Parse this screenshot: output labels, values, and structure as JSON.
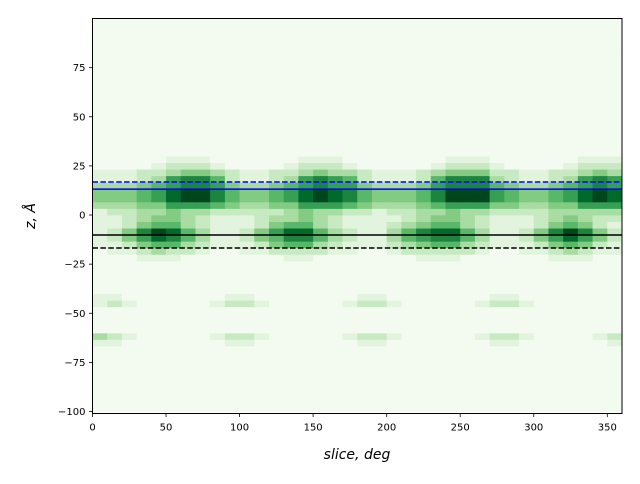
{
  "chart_data": {
    "type": "heatmap",
    "title": "",
    "xlabel": "slice, deg",
    "ylabel": "z, Å",
    "xlim": [
      0,
      360
    ],
    "ylim": [
      -101,
      100
    ],
    "x_ticks": [
      "0",
      "50",
      "100",
      "150",
      "200",
      "250",
      "300",
      "350"
    ],
    "y_ticks": [
      "-100",
      "-75",
      "-50",
      "-25",
      "0",
      "25",
      "50",
      "75"
    ],
    "colormap": "Greens",
    "x_bins": {
      "start": 0,
      "end": 360,
      "count": 36
    },
    "z_bins": {
      "start": -100,
      "end": 100,
      "count": 60
    },
    "intensity_scale": "0-9 relative density per bin, rows listed from lowest z to highest z",
    "rows": [
      "000000000000000000000000000000000000",
      "000000000000000000000000000000000000",
      "000000000000000000000000000000000000",
      "000000000000000000000000000000000000",
      "000000000000000000000000000000000000",
      "000000000000000000000000000000000000",
      "000000000000000000000000000000000000",
      "000000000000000000000000000000000000",
      "000000000000000000000000000000000000",
      "000000000000000000000000000000000000",
      "110000000110000000110000000110000001",
      "321000001221000001221000001221000012",
      "000000000000000000000000000000000000",
      "000000000000000000000000000000000000",
      "000000000000000000000000000000000000",
      "000000000000000000000000000000000000",
      "121000001221000001221000001221000000",
      "110000000110000000110000000110000000",
      "000000000000000000000000000000000000",
      "000000000000000000000000000000000000",
      "000000000000000000000000000000000000",
      "000000000000000000000000000000000000",
      "000000000000000000000000000000000000",
      "000111000000011000000011100000011100",
      "011232210011222211001222221001123211",
      "112455321112455321112345532111245421",
      "124687531124577532113567753112468642",
      "124798531124688532113578853112479742",
      "112455321112455321112345532111245421",
      "112344321112334321111234432111234322",
      "122334332222234332212233433222233333",
      "333446665433446665433345666443344666",
      "444568997544568987544457999654456898",
      "444568997544568987544457999654456898",
      "333456776433456766433346777543345676",
      "111236775211236765211125777321123676",
      "111223443211223433211123444221122343",
      "000012221000012221000001222100001222",
      "000001110000001110000000111000000111",
      "000000000000000000000000000000000000",
      "000000000000000000000000000000000000",
      "000000000000000000000000000000000000",
      "000000000000000000000000000000000000",
      "000000000000000000000000000000000000",
      "000000000000000000000000000000000000",
      "000000000000000000000000000000000000",
      "000000000000000000000000000000000000",
      "000000000000000000000000000000000000",
      "000000000000000000000000000000000000",
      "000000000000000000000000000000000000",
      "000000000000000000000000000000000000",
      "000000000000000000000000000000000000",
      "000000000000000000000000000000000000",
      "000000000000000000000000000000000000",
      "000000000000000000000000000000000000",
      "000000000000000000000000000000000000",
      "000000000000000000000000000000000000",
      "000000000000000000000000000000000000",
      "000000000000000000000000000000000000",
      "000000000000000000000000000000000000"
    ],
    "hlines": [
      {
        "z": 16.8,
        "color": "#0000ff",
        "style": "dashed"
      },
      {
        "z": 13.2,
        "color": "#0000ff",
        "style": "solid"
      },
      {
        "z": -10.2,
        "color": "#000000",
        "style": "solid"
      },
      {
        "z": -16.8,
        "color": "#000000",
        "style": "dashed"
      }
    ],
    "grid": false,
    "legend": "none"
  }
}
